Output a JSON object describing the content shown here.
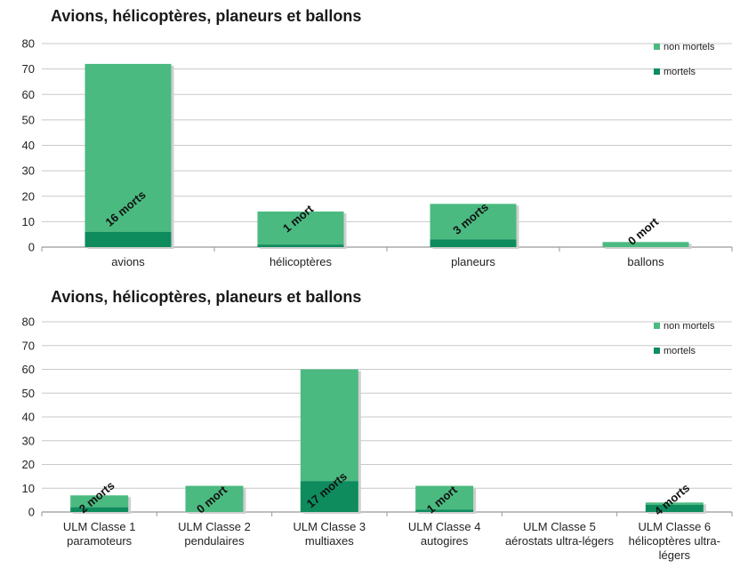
{
  "colors": {
    "non_mortels": "#4bba80",
    "mortels": "#0e8c5e",
    "grid": "#c8c8c8",
    "axis": "#999999"
  },
  "chart_data": [
    {
      "type": "bar",
      "stacked": true,
      "title": "Avions, hélicoptères, planeurs et ballons",
      "categories": [
        "avions",
        "hélicoptères",
        "planeurs",
        "ballons"
      ],
      "series": [
        {
          "name": "mortels",
          "values": [
            6,
            1,
            3,
            0
          ]
        },
        {
          "name": "non mortels",
          "values": [
            66,
            13,
            14,
            2
          ]
        }
      ],
      "bar_labels": [
        "16 morts",
        "1 mort",
        "3 morts",
        "0 mort"
      ],
      "y_ticks": [
        0,
        10,
        20,
        30,
        40,
        50,
        60,
        70,
        80
      ],
      "ylim": [
        0,
        80
      ],
      "grid": true,
      "legend": {
        "position": "top-right",
        "order": [
          "non mortels",
          "mortels"
        ]
      }
    },
    {
      "type": "bar",
      "stacked": true,
      "title": "Avions, hélicoptères, planeurs et ballons",
      "categories": [
        [
          "ULM Classe 1",
          "paramoteurs"
        ],
        [
          "ULM Classe 2",
          "pendulaires"
        ],
        [
          "ULM Classe 3",
          "multiaxes"
        ],
        [
          "ULM Classe 4",
          "autogires"
        ],
        [
          "ULM Classe 5",
          "aérostats ultra-légers"
        ],
        [
          "ULM Classe 6",
          "hélicoptères ultra-",
          "légers"
        ]
      ],
      "series": [
        {
          "name": "mortels",
          "values": [
            2,
            0,
            13,
            1,
            0,
            3
          ]
        },
        {
          "name": "non mortels",
          "values": [
            5,
            11,
            47,
            10,
            0,
            1
          ]
        }
      ],
      "bar_labels": [
        "2 morts",
        "0 mort",
        "17 morts",
        "1 mort",
        "",
        "4 morts"
      ],
      "y_ticks": [
        0,
        10,
        20,
        30,
        40,
        50,
        60,
        70,
        80
      ],
      "ylim": [
        0,
        80
      ],
      "grid": true,
      "legend": {
        "position": "top-right",
        "order": [
          "non mortels",
          "mortels"
        ]
      }
    }
  ]
}
